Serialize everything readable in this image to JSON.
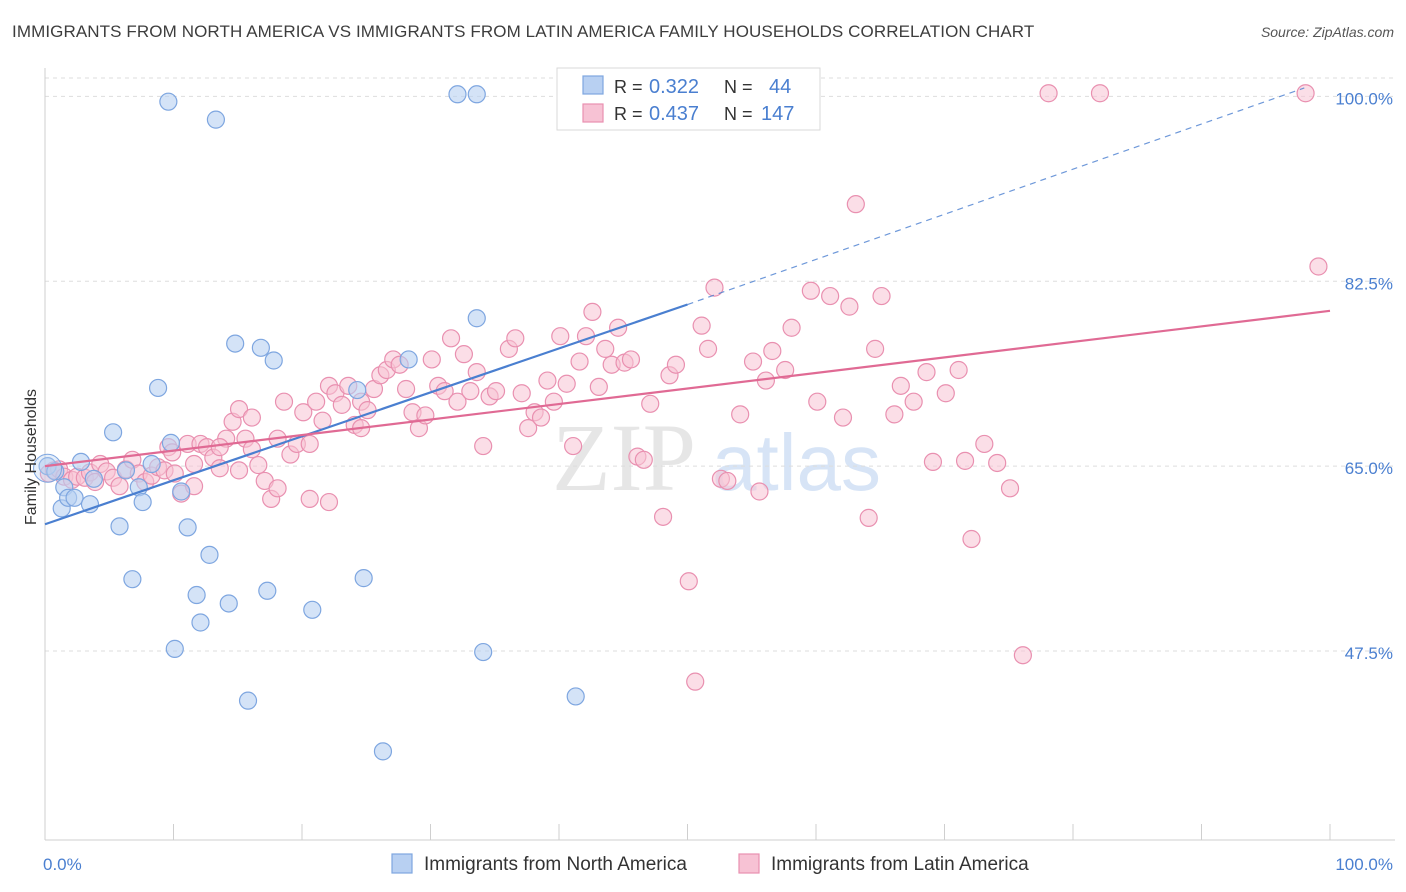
{
  "header": {
    "title": "IMMIGRANTS FROM NORTH AMERICA VS IMMIGRANTS FROM LATIN AMERICA FAMILY HOUSEHOLDS CORRELATION CHART",
    "source": "Source: ZipAtlas.com"
  },
  "watermark": {
    "zip": "ZIP",
    "atlas": "atlas"
  },
  "colors": {
    "blue": "#4a7fd0",
    "blue_fill": "#b8d0f2",
    "blue_stroke": "#7ea6e0",
    "pink": "#e06a94",
    "pink_fill": "#f7c2d4",
    "pink_stroke": "#e990b0",
    "grid": "#dddddd",
    "axis_label": "#4a7fd0"
  },
  "legend": {
    "rows": [
      {
        "r_label": "R =",
        "r_value": "0.322",
        "n_label": "N =",
        "n_value": "44"
      },
      {
        "r_label": "R =",
        "r_value": "0.437",
        "n_label": "N =",
        "n_value": "147"
      }
    ]
  },
  "bottom_legend": {
    "items": [
      {
        "label": "Immigrants from North America"
      },
      {
        "label": "Immigrants from Latin America"
      }
    ]
  },
  "chart_data": {
    "type": "scatter",
    "title": "IMMIGRANTS FROM NORTH AMERICA VS IMMIGRANTS FROM LATIN AMERICA FAMILY HOUSEHOLDS CORRELATION CHART",
    "xlabel": "",
    "ylabel": "Family Households",
    "xlim": [
      0,
      100
    ],
    "ylim": [
      30,
      102
    ],
    "x_tick_labels": [
      "0.0%",
      "100.0%"
    ],
    "y_ticks": [
      {
        "value": 47.5,
        "label": "47.5%"
      },
      {
        "value": 65.0,
        "label": "65.0%"
      },
      {
        "value": 82.5,
        "label": "82.5%"
      },
      {
        "value": 100.0,
        "label": "100.0%"
      }
    ],
    "grid": true,
    "legend_position": "top-center",
    "series": [
      {
        "name": "Immigrants from North America",
        "color": "#4a7fd0",
        "r": 0.322,
        "n": 44,
        "trend": {
          "x0": 0,
          "y0": 59.5,
          "x1": 50,
          "y1": 80.3,
          "dash_to_x": 98,
          "dash_to_y": 100.8
        },
        "points": [
          [
            0.2,
            65
          ],
          [
            0.8,
            64.5
          ],
          [
            1.3,
            61
          ],
          [
            1.5,
            63
          ],
          [
            1.8,
            62
          ],
          [
            2.3,
            62
          ],
          [
            2.8,
            65.4
          ],
          [
            3.5,
            61.4
          ],
          [
            3.8,
            63.8
          ],
          [
            5.3,
            68.2
          ],
          [
            5.8,
            59.3
          ],
          [
            6.3,
            64.6
          ],
          [
            6.8,
            54.3
          ],
          [
            7.3,
            63
          ],
          [
            7.6,
            61.6
          ],
          [
            8.3,
            65.2
          ],
          [
            8.8,
            72.4
          ],
          [
            9.6,
            99.5
          ],
          [
            9.8,
            67.2
          ],
          [
            10.1,
            47.7
          ],
          [
            10.6,
            62.6
          ],
          [
            11.1,
            59.2
          ],
          [
            11.8,
            52.8
          ],
          [
            12.1,
            50.2
          ],
          [
            12.8,
            56.6
          ],
          [
            13.3,
            97.8
          ],
          [
            14.3,
            52
          ],
          [
            14.8,
            76.6
          ],
          [
            15.8,
            42.8
          ],
          [
            16.8,
            76.2
          ],
          [
            17.3,
            53.2
          ],
          [
            17.8,
            75
          ],
          [
            20.8,
            51.4
          ],
          [
            24.3,
            72.2
          ],
          [
            24.8,
            54.4
          ],
          [
            26.3,
            38
          ],
          [
            28.3,
            75.1
          ],
          [
            32.1,
            100.2
          ],
          [
            33.6,
            100.2
          ],
          [
            33.6,
            79
          ],
          [
            34.1,
            47.4
          ],
          [
            41.3,
            43.2
          ],
          [
            47.3,
            100.2
          ],
          [
            47.6,
            100
          ]
        ]
      },
      {
        "name": "Immigrants from Latin America",
        "color": "#e06a94",
        "r": 0.437,
        "n": 147,
        "trend": {
          "x0": 0,
          "y0": 65.0,
          "x1": 100,
          "y1": 79.7
        },
        "points": [
          [
            0.3,
            64.3
          ],
          [
            0.7,
            64.6
          ],
          [
            1.1,
            64.7
          ],
          [
            1.5,
            64
          ],
          [
            2.1,
            63.7
          ],
          [
            2.5,
            64
          ],
          [
            3.1,
            63.9
          ],
          [
            3.5,
            64.4
          ],
          [
            3.9,
            63.5
          ],
          [
            4.3,
            65.2
          ],
          [
            4.8,
            64.5
          ],
          [
            5.3,
            63.9
          ],
          [
            5.8,
            63.1
          ],
          [
            6.3,
            64.7
          ],
          [
            6.8,
            65.6
          ],
          [
            7.3,
            64.3
          ],
          [
            7.8,
            63.5
          ],
          [
            8.3,
            64.1
          ],
          [
            8.8,
            64.9
          ],
          [
            9.3,
            64.6
          ],
          [
            9.6,
            66.8
          ],
          [
            10.1,
            64.3
          ],
          [
            10.6,
            62.4
          ],
          [
            11.1,
            67.1
          ],
          [
            11.6,
            65.2
          ],
          [
            12.1,
            67.1
          ],
          [
            12.6,
            66.8
          ],
          [
            13.1,
            65.8
          ],
          [
            13.6,
            64.8
          ],
          [
            14.1,
            67.6
          ],
          [
            14.6,
            69.2
          ],
          [
            15.1,
            70.4
          ],
          [
            15.6,
            67.6
          ],
          [
            16.1,
            69.6
          ],
          [
            16.6,
            65.1
          ],
          [
            17.1,
            63.6
          ],
          [
            17.6,
            61.9
          ],
          [
            18.1,
            67.6
          ],
          [
            18.6,
            71.1
          ],
          [
            19.1,
            66.1
          ],
          [
            19.6,
            67.1
          ],
          [
            20.1,
            70.1
          ],
          [
            20.6,
            61.9
          ],
          [
            21.1,
            71.1
          ],
          [
            21.6,
            69.3
          ],
          [
            22.1,
            72.6
          ],
          [
            22.6,
            71.9
          ],
          [
            23.1,
            70.8
          ],
          [
            23.6,
            72.6
          ],
          [
            24.1,
            68.9
          ],
          [
            24.6,
            71.1
          ],
          [
            25.1,
            70.3
          ],
          [
            25.6,
            72.3
          ],
          [
            26.1,
            73.6
          ],
          [
            26.6,
            74.1
          ],
          [
            27.1,
            75.1
          ],
          [
            27.6,
            74.6
          ],
          [
            28.1,
            72.3
          ],
          [
            28.6,
            70.1
          ],
          [
            29.1,
            68.6
          ],
          [
            29.6,
            69.8
          ],
          [
            30.1,
            75.1
          ],
          [
            30.6,
            72.6
          ],
          [
            31.1,
            72.1
          ],
          [
            31.6,
            77.1
          ],
          [
            32.1,
            71.1
          ],
          [
            32.6,
            75.6
          ],
          [
            33.1,
            72.1
          ],
          [
            33.6,
            73.9
          ],
          [
            34.1,
            66.9
          ],
          [
            34.6,
            71.6
          ],
          [
            35.1,
            72.1
          ],
          [
            36.1,
            76.1
          ],
          [
            36.6,
            77.1
          ],
          [
            37.1,
            71.9
          ],
          [
            37.6,
            68.6
          ],
          [
            38.1,
            70.1
          ],
          [
            38.6,
            69.6
          ],
          [
            39.1,
            73.1
          ],
          [
            39.6,
            71.1
          ],
          [
            40.1,
            77.3
          ],
          [
            40.6,
            72.8
          ],
          [
            41.1,
            66.9
          ],
          [
            41.6,
            74.9
          ],
          [
            42.1,
            77.3
          ],
          [
            42.6,
            79.6
          ],
          [
            43.1,
            72.5
          ],
          [
            43.6,
            76.1
          ],
          [
            44.1,
            74.6
          ],
          [
            44.6,
            78.1
          ],
          [
            45.1,
            74.8
          ],
          [
            45.6,
            75.1
          ],
          [
            46.1,
            65.9
          ],
          [
            46.6,
            65.6
          ],
          [
            47.1,
            70.9
          ],
          [
            48.1,
            60.2
          ],
          [
            48.6,
            73.6
          ],
          [
            49.1,
            74.6
          ],
          [
            50.1,
            54.1
          ],
          [
            50.6,
            44.6
          ],
          [
            51.1,
            78.3
          ],
          [
            51.6,
            76.1
          ],
          [
            52.1,
            81.9
          ],
          [
            52.6,
            63.8
          ],
          [
            53.1,
            63.6
          ],
          [
            54.1,
            69.9
          ],
          [
            55.1,
            74.9
          ],
          [
            55.6,
            62.6
          ],
          [
            56.1,
            73.1
          ],
          [
            56.6,
            75.9
          ],
          [
            57.6,
            74.1
          ],
          [
            58.1,
            78.1
          ],
          [
            59.6,
            81.6
          ],
          [
            60.1,
            71.1
          ],
          [
            61.1,
            81.1
          ],
          [
            62.1,
            69.6
          ],
          [
            62.6,
            80.1
          ],
          [
            63.1,
            89.8
          ],
          [
            64.1,
            60.1
          ],
          [
            64.6,
            76.1
          ],
          [
            65.1,
            81.1
          ],
          [
            66.1,
            69.9
          ],
          [
            66.6,
            72.6
          ],
          [
            67.6,
            71.1
          ],
          [
            68.6,
            73.9
          ],
          [
            69.1,
            65.4
          ],
          [
            70.1,
            71.9
          ],
          [
            71.1,
            74.1
          ],
          [
            71.6,
            65.5
          ],
          [
            72.1,
            58.1
          ],
          [
            73.1,
            67.1
          ],
          [
            74.1,
            65.3
          ],
          [
            75.1,
            62.9
          ],
          [
            76.1,
            47.1
          ],
          [
            78.1,
            100.3
          ],
          [
            82.1,
            100.3
          ],
          [
            98.1,
            100.3
          ],
          [
            99.1,
            83.9
          ],
          [
            22.1,
            61.6
          ],
          [
            18.1,
            62.9
          ],
          [
            9.9,
            66.3
          ],
          [
            13.6,
            66.8
          ],
          [
            16.1,
            66.6
          ],
          [
            11.6,
            63.1
          ],
          [
            15.1,
            64.6
          ],
          [
            20.6,
            67.1
          ],
          [
            24.6,
            68.6
          ]
        ]
      }
    ]
  }
}
